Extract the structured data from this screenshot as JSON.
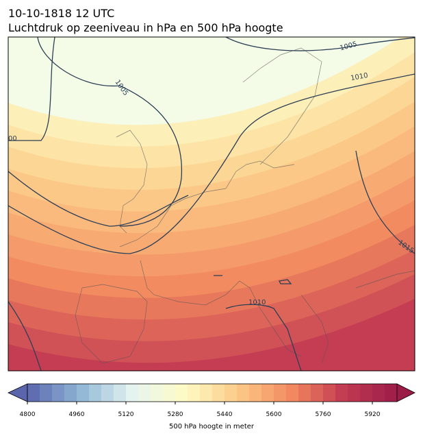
{
  "title": "10-10-1818 12 UTC",
  "subtitle": "Luchtdruk op zeeniveau in hPa en 500 hPa hoogte",
  "contour_labels": [
    "1005",
    "1005",
    "1010",
    "00",
    "1015",
    "1010"
  ],
  "colorbar": {
    "label": "500 hPa hoogte in meter",
    "limits": [
      4800,
      6000
    ],
    "ticks": [
      4800,
      4960,
      5120,
      5280,
      5440,
      5600,
      5760,
      5920
    ],
    "colors": [
      "#5a65ac",
      "#8fb6d6",
      "#e6f4f0",
      "#fefcc4",
      "#fcc987",
      "#f2895f",
      "#c23a52",
      "#9c1c48"
    ]
  }
}
